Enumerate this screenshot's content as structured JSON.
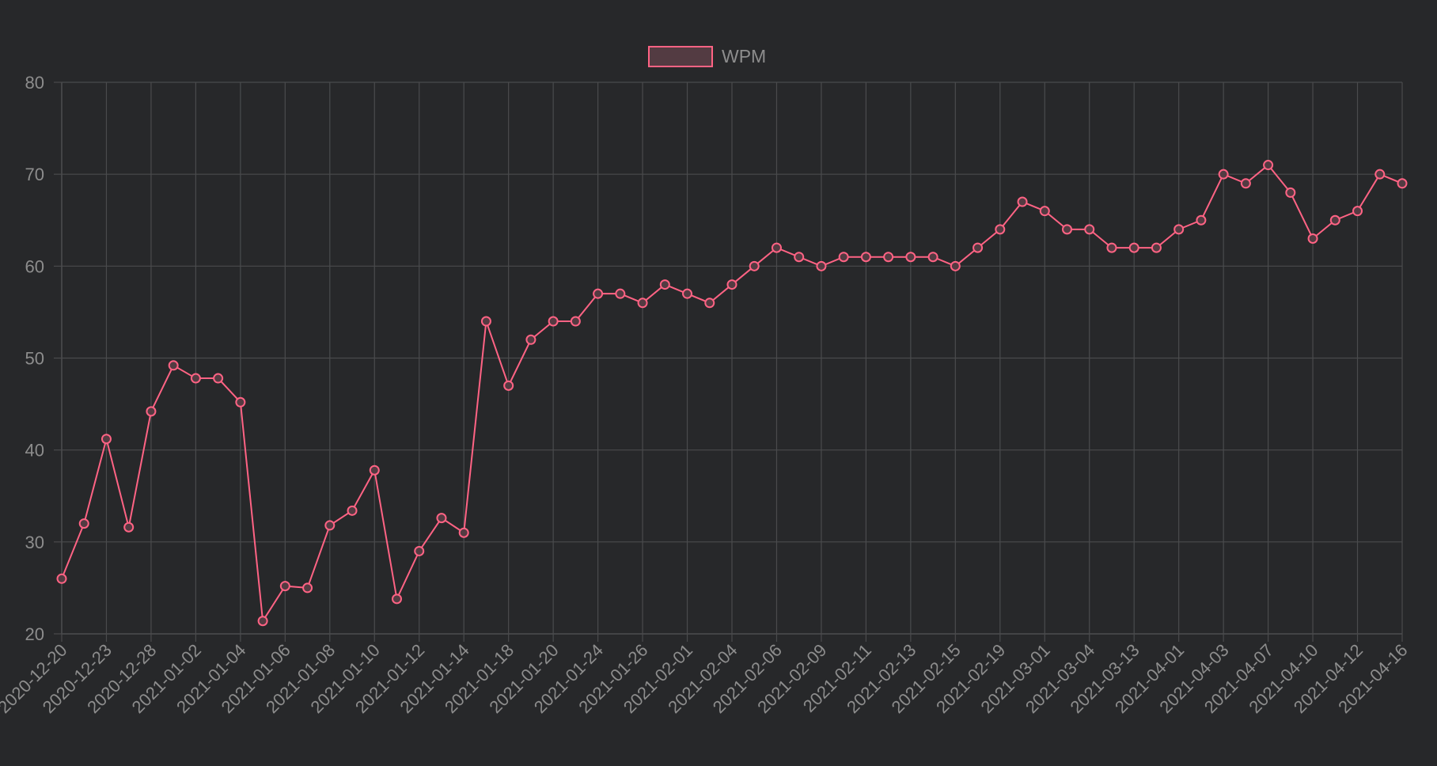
{
  "chart_data": {
    "type": "line",
    "legend": {
      "label": "WPM",
      "placement": "top-center"
    },
    "x": [
      "2020-12-20",
      "",
      "2020-12-23",
      "",
      "2020-12-28",
      "",
      "2021-01-02",
      "",
      "2021-01-04",
      "",
      "2021-01-06",
      "",
      "2021-01-08",
      "",
      "2021-01-10",
      "",
      "2021-01-12",
      "",
      "2021-01-14",
      "",
      "2021-01-18",
      "",
      "2021-01-20",
      "",
      "2021-01-24",
      "",
      "2021-01-26",
      "",
      "2021-02-01",
      "",
      "2021-02-04",
      "",
      "2021-02-06",
      "",
      "2021-02-09",
      "",
      "2021-02-11",
      "",
      "2021-02-13",
      "",
      "2021-02-15",
      "",
      "2021-02-19",
      "",
      "2021-03-01",
      "",
      "2021-03-04",
      "",
      "2021-03-13",
      "",
      "2021-04-01",
      "",
      "2021-04-03",
      "",
      "2021-04-07",
      "",
      "2021-04-10",
      "",
      "2021-04-12",
      "",
      "2021-04-16"
    ],
    "series": [
      {
        "name": "WPM",
        "values": [
          26,
          32,
          41.2,
          31.6,
          44.2,
          49.2,
          47.8,
          47.8,
          45.2,
          21.4,
          25.2,
          25,
          31.8,
          33.4,
          37.8,
          23.8,
          29,
          32.6,
          31,
          54,
          47,
          52,
          54,
          54,
          57,
          57,
          56,
          58,
          57,
          56,
          58,
          60,
          62,
          61,
          60,
          61,
          61,
          61,
          61,
          61,
          60,
          62,
          64,
          67,
          66,
          64,
          64,
          62,
          62,
          62,
          64,
          65,
          70,
          69,
          71,
          68,
          63,
          65,
          66,
          70,
          69
        ]
      }
    ],
    "ylim": [
      20,
      80
    ],
    "yticks": [
      20,
      30,
      40,
      50,
      60,
      70,
      80
    ],
    "grid": true,
    "colors": {
      "line": "#ff6384",
      "fill": "#533b42",
      "grid": "#4a4b4d",
      "tick_text": "#8d8d8d",
      "background": "#27282a"
    }
  }
}
